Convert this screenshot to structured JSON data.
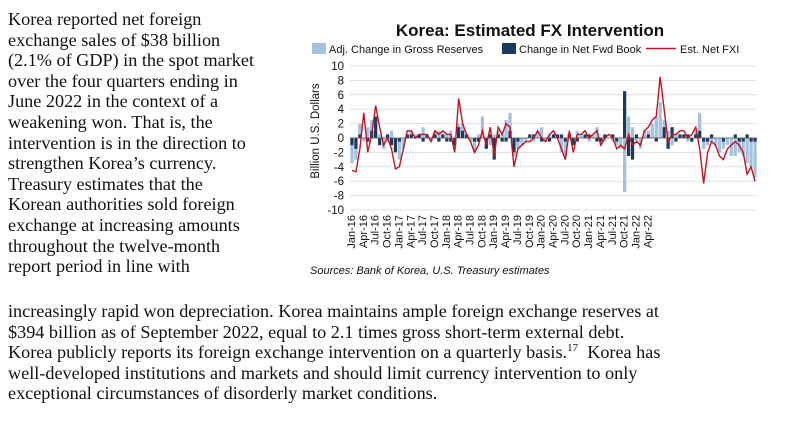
{
  "text": {
    "left_lines": [
      "Korea reported net foreign",
      "exchange sales of $38 billion",
      "(2.1% of GDP) in the spot market",
      "over the four quarters ending in",
      "June 2022 in the context of a",
      "weakening won.  That is, the",
      "intervention is in the direction to",
      "strengthen Korea’s currency.",
      "Treasury estimates that the",
      "Korean authorities sold foreign",
      "exchange at increasing amounts",
      "throughout the twelve-month",
      "report period in line with"
    ],
    "bottom_lines": [
      "increasingly rapid won depreciation.  Korea maintains ample foreign exchange reserves at",
      "$394 billion as of September 2022, equal to 2.1 times gross short-term external debt.",
      "Korea publicly reports its foreign exchange intervention on a quarterly basis."
    ],
    "footnote_ref": "17",
    "bottom_lines_after": [
      "  Korea has",
      "well-developed institutions and markets and should limit currency intervention to only",
      "exceptional circumstances of disorderly market conditions."
    ]
  },
  "chart_data": {
    "type": "bar",
    "title": "Korea: Estimated FX Intervention",
    "ylabel": "Billion U.S. Dollars",
    "ylim": [
      -10,
      10
    ],
    "yticks": [
      10,
      8,
      6,
      4,
      2,
      0,
      -2,
      -4,
      -6,
      -8,
      -10
    ],
    "x_tick_labels": [
      "Jan-16",
      "Apr-16",
      "Jul-16",
      "Oct-16",
      "Jan-17",
      "Apr-17",
      "Jul-17",
      "Oct-17",
      "Jan-18",
      "Apr-18",
      "Jul-18",
      "Oct-18",
      "Jan-19",
      "Apr-19",
      "Jul-19",
      "Oct-19",
      "Jan-20",
      "Apr-20",
      "Jul-20",
      "Oct-20",
      "Jan-21",
      "Apr-21",
      "Jul-21",
      "Oct-21",
      "Jan-22",
      "Apr-22"
    ],
    "source": "Sources: Bank of Korea, U.S. Treasury estimates",
    "colors": {
      "gross": "#a6c0df",
      "fwd": "#1c3a5e",
      "fxi": "#c0151e"
    },
    "series": [
      {
        "name": "Adj. Change in Gross Reserves",
        "values": [
          -3.5,
          -3.0,
          2.0,
          -0.5,
          1.5,
          2.5,
          1.0,
          0.5,
          -1.5,
          0.0,
          1.0,
          -1.5,
          -3.0,
          -1.5,
          0.5,
          1.0,
          0.5,
          0.5,
          1.5,
          0.5,
          -0.5,
          1.0,
          1.0,
          0.5,
          0.5,
          1.0,
          -1.5,
          2.0,
          2.0,
          0.0,
          -0.5,
          -2.0,
          0.5,
          3.0,
          0.0,
          -1.0,
          0.5,
          1.0,
          0.5,
          2.5,
          3.5,
          -2.5,
          -1.5,
          -1.0,
          -0.5,
          0.0,
          -0.5,
          1.0,
          1.5,
          -0.5,
          0.5,
          0.5,
          0.5,
          -2.0,
          -2.5,
          0.5,
          -0.5,
          1.0,
          0.5,
          0.5,
          -0.5,
          0.5,
          1.5,
          -1.0,
          -0.5,
          0.0,
          -0.5,
          -1.0,
          -1.5,
          -7.5,
          3.0,
          1.5,
          -0.5,
          -1.5,
          1.0,
          1.0,
          2.0,
          3.0,
          5.0,
          2.5,
          1.0,
          -1.0,
          0.5,
          0.5,
          0.5,
          -0.5,
          0.0,
          1.0,
          3.5,
          -1.5,
          -1.0,
          -0.5,
          -1.0,
          -2.0,
          -1.5,
          -1.0,
          -2.5,
          -2.5,
          -2.0,
          -2.5,
          -3.5,
          -4.0,
          -5.5
        ]
      },
      {
        "name": "Change in Net Fwd Book",
        "values": [
          -1.0,
          -1.5,
          0.5,
          0.0,
          -0.5,
          1.0,
          3.0,
          -1.0,
          0.0,
          0.5,
          -1.0,
          -2.0,
          -0.5,
          0.0,
          0.5,
          0.5,
          0.0,
          0.5,
          -0.5,
          0.5,
          0.0,
          0.5,
          -0.5,
          0.5,
          -0.5,
          -0.5,
          -1.0,
          1.5,
          1.0,
          0.5,
          0.0,
          -0.5,
          -0.5,
          0.0,
          -1.5,
          0.5,
          -3.0,
          0.5,
          -0.5,
          -0.5,
          1.0,
          -2.0,
          -0.5,
          0.0,
          0.0,
          0.5,
          0.5,
          0.0,
          -0.5,
          0.0,
          -0.5,
          0.5,
          0.5,
          0.5,
          -0.5,
          0.5,
          -1.0,
          -0.5,
          0.0,
          0.5,
          0.5,
          0.0,
          -0.5,
          -0.5,
          0.5,
          0.0,
          0.5,
          -0.5,
          0.0,
          6.5,
          -2.5,
          -3.0,
          0.5,
          0.0,
          0.0,
          0.5,
          0.0,
          -0.5,
          0.0,
          1.5,
          -1.5,
          1.5,
          -0.5,
          0.5,
          0.5,
          0.5,
          -0.5,
          0.5,
          1.0,
          -0.5,
          -0.5,
          0.5,
          0.0,
          0.0,
          -0.5,
          0.0,
          0.0,
          0.5,
          -0.5,
          -0.5,
          0.5,
          -0.5,
          -0.5
        ]
      },
      {
        "name": "Est. Net FXI",
        "values": [
          -4.5,
          -4.7,
          -1.5,
          3.5,
          -2.0,
          0.5,
          4.5,
          1.5,
          -1.0,
          0.0,
          -1.5,
          -4.3,
          -4.0,
          -1.5,
          1.0,
          1.0,
          0.0,
          0.5,
          0.5,
          0.5,
          -0.5,
          1.0,
          0.5,
          1.0,
          0.5,
          0.5,
          -2.0,
          5.5,
          2.0,
          0.5,
          -0.5,
          -2.0,
          -1.0,
          1.0,
          -1.0,
          1.5,
          -2.5,
          1.5,
          0.5,
          2.0,
          1.5,
          -4.0,
          -1.5,
          -1.0,
          -0.5,
          -0.5,
          0.0,
          1.0,
          0.0,
          -0.5,
          0.5,
          1.0,
          0.0,
          -1.5,
          -3.0,
          1.0,
          -2.0,
          0.5,
          0.5,
          1.0,
          0.0,
          0.5,
          1.0,
          -1.0,
          0.0,
          0.5,
          0.0,
          -1.5,
          -1.0,
          -1.5,
          0.5,
          -1.0,
          -0.5,
          -1.0,
          1.0,
          1.5,
          2.5,
          3.0,
          8.5,
          4.0,
          -0.5,
          0.5,
          0.5,
          1.0,
          1.0,
          0.0,
          0.5,
          1.5,
          -1.5,
          -6.3,
          -2.0,
          -0.5,
          -1.0,
          -2.5,
          -3.0,
          -1.5,
          -1.0,
          -0.5,
          -1.0,
          -2.0,
          -5.0,
          -4.0,
          -6.0
        ]
      }
    ]
  }
}
